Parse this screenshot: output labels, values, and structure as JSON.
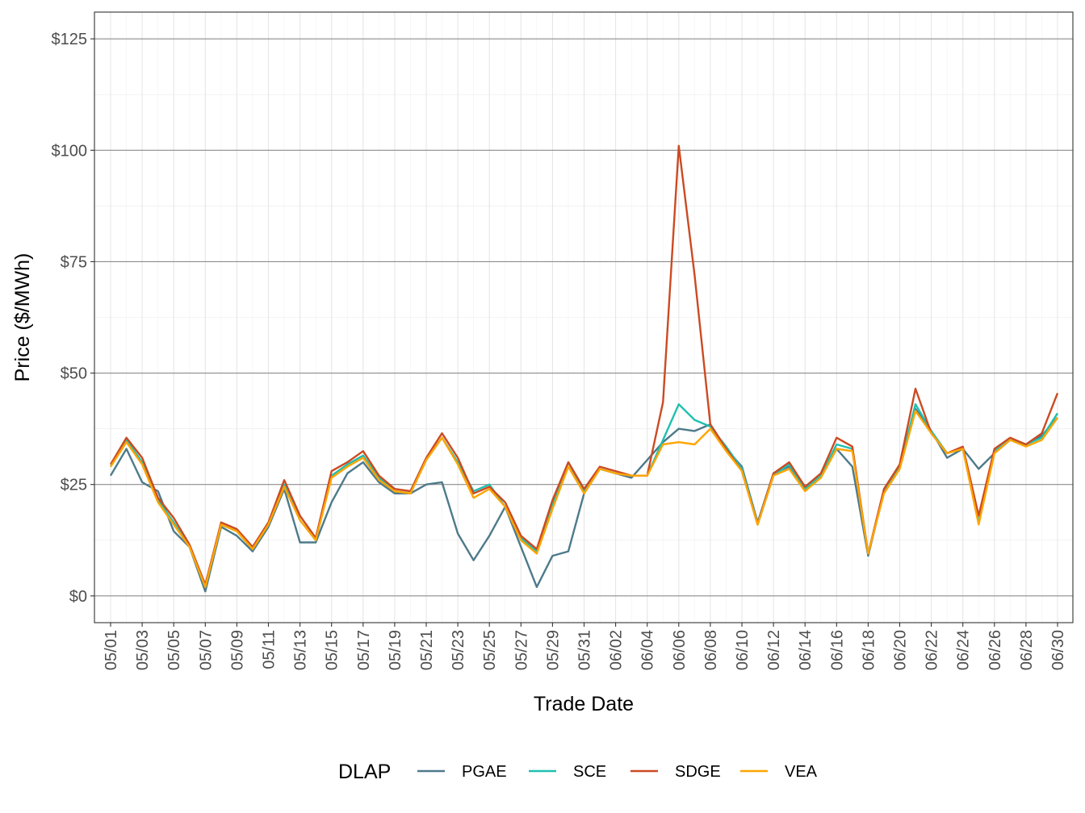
{
  "chart_data": {
    "type": "line",
    "title": "",
    "xlabel": "Trade Date",
    "ylabel": "Price ($/MWh)",
    "ylim": [
      -6,
      131
    ],
    "y_ticks": [
      0,
      25,
      50,
      75,
      100,
      125
    ],
    "y_tick_labels": [
      "$0",
      "$25",
      "$50",
      "$75",
      "$100",
      "$125"
    ],
    "grid": true,
    "legend": {
      "title": "DLAP",
      "position": "bottom"
    },
    "colors": {
      "PGAE": "#4e7a8a",
      "SCE": "#1ec0b0",
      "SDGE": "#cc4a22",
      "VEA": "#ffa500"
    },
    "x": [
      "05/01",
      "05/02",
      "05/03",
      "05/04",
      "05/05",
      "05/06",
      "05/07",
      "05/08",
      "05/09",
      "05/10",
      "05/11",
      "05/12",
      "05/13",
      "05/14",
      "05/15",
      "05/16",
      "05/17",
      "05/18",
      "05/19",
      "05/20",
      "05/21",
      "05/22",
      "05/23",
      "05/24",
      "05/25",
      "05/26",
      "05/27",
      "05/28",
      "05/29",
      "05/30",
      "05/31",
      "06/01",
      "06/02",
      "06/03",
      "06/04",
      "06/05",
      "06/06",
      "06/07",
      "06/08",
      "06/09",
      "06/10",
      "06/11",
      "06/12",
      "06/13",
      "06/14",
      "06/15",
      "06/16",
      "06/17",
      "06/18",
      "06/19",
      "06/20",
      "06/21",
      "06/22",
      "06/23",
      "06/24",
      "06/25",
      "06/26",
      "06/27",
      "06/28",
      "06/29",
      "06/30"
    ],
    "x_tick_labels": [
      "05/01",
      "05/03",
      "05/05",
      "05/07",
      "05/09",
      "05/11",
      "05/13",
      "05/15",
      "05/17",
      "05/19",
      "05/21",
      "05/23",
      "05/25",
      "05/27",
      "05/29",
      "05/31",
      "06/02",
      "06/04",
      "06/06",
      "06/08",
      "06/10",
      "06/12",
      "06/14",
      "06/16",
      "06/18",
      "06/20",
      "06/22",
      "06/24",
      "06/26",
      "06/28",
      "06/30"
    ],
    "series": [
      {
        "name": "PGAE",
        "values": [
          27,
          33,
          25.5,
          23.5,
          14.5,
          11,
          1,
          15.5,
          13.5,
          10,
          15.5,
          24,
          12,
          12,
          21,
          27.5,
          30,
          25.5,
          23,
          23,
          25,
          25.5,
          14,
          8,
          13.5,
          20,
          11,
          2,
          9,
          10,
          23,
          28.5,
          27.5,
          26.5,
          30.5,
          34.5,
          37.5,
          37,
          38.5,
          33,
          29,
          16.5,
          27.5,
          29,
          24.5,
          27,
          33,
          29,
          9,
          23.5,
          29,
          42,
          37,
          31,
          33,
          28.5,
          32,
          35,
          34,
          36,
          40
        ]
      },
      {
        "name": "SCE",
        "values": [
          29,
          35,
          30,
          21.5,
          16.5,
          11,
          2,
          16,
          14.5,
          10.5,
          16,
          25,
          17,
          12.5,
          27,
          29.5,
          31.5,
          26.5,
          23.5,
          23,
          30.5,
          35.5,
          30,
          23.5,
          25,
          20,
          13,
          10,
          20.5,
          30,
          23.5,
          28.5,
          27.5,
          27,
          27,
          35,
          43,
          39.5,
          38,
          33.5,
          28.5,
          16,
          27,
          29.5,
          24,
          27,
          34,
          33,
          9.5,
          23.5,
          29,
          43,
          37,
          32,
          33,
          16.5,
          32.5,
          35,
          34,
          35.5,
          41
        ]
      },
      {
        "name": "SDGE",
        "values": [
          29.5,
          35.5,
          31,
          22,
          17.5,
          11.5,
          2.5,
          16.5,
          15,
          11,
          16.5,
          26,
          18,
          13,
          28,
          30,
          32.5,
          27,
          24,
          23.5,
          31,
          36.5,
          31,
          23,
          24.5,
          21,
          13.5,
          10.5,
          21.5,
          30,
          24,
          29,
          28,
          27,
          27,
          43.5,
          101,
          72,
          38.5,
          33,
          28,
          16,
          27.5,
          30,
          24.5,
          27.5,
          35.5,
          33.5,
          9.5,
          24,
          29.5,
          46.5,
          36.5,
          32,
          33.5,
          18,
          33,
          35.5,
          34,
          36.5,
          45.5
        ]
      },
      {
        "name": "VEA",
        "values": [
          29,
          34.5,
          29.5,
          21,
          16,
          11,
          2,
          16,
          14.5,
          10.5,
          16,
          24.5,
          17,
          12.5,
          26.5,
          29,
          31,
          26,
          23.5,
          23,
          30.5,
          35.5,
          29.5,
          22,
          24,
          20,
          12.5,
          9.5,
          19.5,
          29,
          23,
          28.5,
          27.5,
          27,
          27,
          34,
          34.5,
          34,
          37.5,
          32.5,
          28,
          16,
          27,
          28.5,
          23.5,
          26.5,
          33,
          32.5,
          9.5,
          23,
          28.5,
          41.5,
          36.5,
          32,
          33,
          16,
          32,
          35,
          33.5,
          35,
          40
        ]
      }
    ]
  }
}
